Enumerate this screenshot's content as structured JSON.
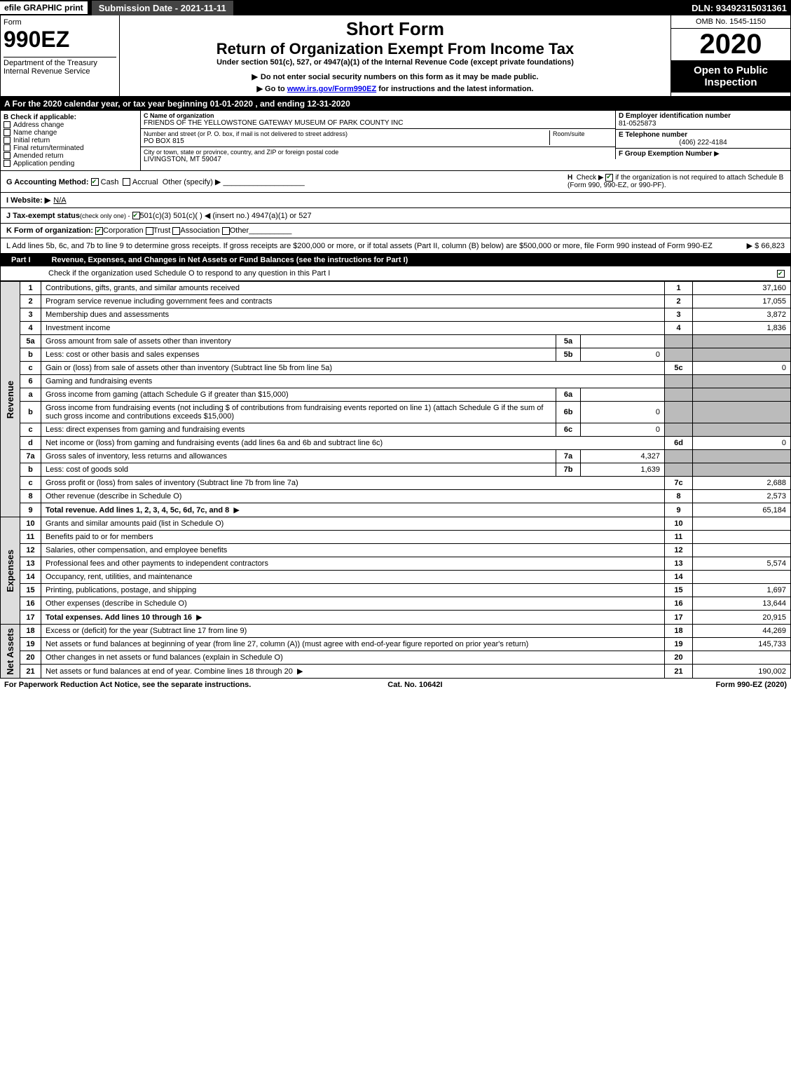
{
  "topbar": {
    "efile": "efile GRAPHIC print",
    "subdate": "Submission Date - 2021-11-11",
    "dln": "DLN: 93492315031361"
  },
  "header": {
    "form_label": "Form",
    "form_number": "990EZ",
    "dept": "Department of the Treasury\nInternal Revenue Service",
    "short_form": "Short Form",
    "return_title": "Return of Organization Exempt From Income Tax",
    "under_section": "Under section 501(c), 527, or 4947(a)(1) of the Internal Revenue Code (except private foundations)",
    "no_ssn": "Do not enter social security numbers on this form as it may be made public.",
    "go_to_pre": "Go to ",
    "go_to_link": "www.irs.gov/Form990EZ",
    "go_to_post": " for instructions and the latest information.",
    "omb": "OMB No. 1545-1150",
    "year": "2020",
    "open_public": "Open to Public Inspection"
  },
  "section_a": "A For the 2020 calendar year, or tax year beginning 01-01-2020 , and ending 12-31-2020",
  "section_b": {
    "title": "B  Check if applicable:",
    "options": [
      "Address change",
      "Name change",
      "Initial return",
      "Final return/terminated",
      "Amended return",
      "Application pending"
    ]
  },
  "section_c": {
    "label": "C Name of organization",
    "name": "FRIENDS OF THE YELLOWSTONE GATEWAY MUSEUM OF PARK COUNTY INC",
    "street_label": "Number and street (or P. O. box, if mail is not delivered to street address)",
    "street": "PO BOX 815",
    "room_label": "Room/suite",
    "city_label": "City or town, state or province, country, and ZIP or foreign postal code",
    "city": "LIVINGSTON, MT  59047"
  },
  "section_d": {
    "label": "D Employer identification number",
    "value": "81-0525873"
  },
  "section_e": {
    "label": "E Telephone number",
    "value": "(406) 222-4184"
  },
  "section_f": {
    "label": "F Group Exemption Number",
    "arrow": "▶"
  },
  "section_g": {
    "label": "G Accounting Method:",
    "cash": "Cash",
    "accrual": "Accrual",
    "other": "Other (specify) ▶"
  },
  "section_h": {
    "label": "H",
    "text": "Check ▶",
    "text2": "if the organization is not required to attach Schedule B (Form 990, 990-EZ, or 990-PF)."
  },
  "section_i": {
    "label": "I Website: ▶",
    "value": "N/A"
  },
  "section_j": {
    "label": "J Tax-exempt status",
    "sub": "(check only one) -",
    "opts": "501(c)(3)   501(c)(  ) ◀ (insert no.)   4947(a)(1) or   527"
  },
  "section_k": {
    "label": "K Form of organization:",
    "opts": [
      "Corporation",
      "Trust",
      "Association",
      "Other"
    ]
  },
  "section_l": {
    "text": "L Add lines 5b, 6c, and 7b to line 9 to determine gross receipts. If gross receipts are $200,000 or more, or if total assets (Part II, column (B) below) are $500,000 or more, file Form 990 instead of Form 990-EZ",
    "value": "$ 66,823"
  },
  "part1": {
    "label": "Part I",
    "title": "Revenue, Expenses, and Changes in Net Assets or Fund Balances (see the instructions for Part I)",
    "check_text": "Check if the organization used Schedule O to respond to any question in this Part I"
  },
  "sidelabels": {
    "revenue": "Revenue",
    "expenses": "Expenses",
    "netassets": "Net Assets"
  },
  "lines": [
    {
      "n": "1",
      "desc": "Contributions, gifts, grants, and similar amounts received",
      "ref": "1",
      "val": "37,160",
      "group": "rev"
    },
    {
      "n": "2",
      "desc": "Program service revenue including government fees and contracts",
      "ref": "2",
      "val": "17,055",
      "group": "rev"
    },
    {
      "n": "3",
      "desc": "Membership dues and assessments",
      "ref": "3",
      "val": "3,872",
      "group": "rev"
    },
    {
      "n": "4",
      "desc": "Investment income",
      "ref": "4",
      "val": "1,836",
      "group": "rev"
    },
    {
      "n": "5a",
      "desc": "Gross amount from sale of assets other than inventory",
      "mini_ref": "5a",
      "mini_val": "",
      "group": "rev",
      "shaded_right": true
    },
    {
      "n": "b",
      "desc": "Less: cost or other basis and sales expenses",
      "mini_ref": "5b",
      "mini_val": "0",
      "group": "rev",
      "shaded_right": true
    },
    {
      "n": "c",
      "desc": "Gain or (loss) from sale of assets other than inventory (Subtract line 5b from line 5a)",
      "ref": "5c",
      "val": "0",
      "group": "rev"
    },
    {
      "n": "6",
      "desc": "Gaming and fundraising events",
      "group": "rev",
      "shaded_right": true,
      "no_ref": true
    },
    {
      "n": "a",
      "desc": "Gross income from gaming (attach Schedule G if greater than $15,000)",
      "mini_ref": "6a",
      "mini_val": "",
      "group": "rev",
      "shaded_right": true
    },
    {
      "n": "b",
      "desc": "Gross income from fundraising events (not including $                    of contributions from fundraising events reported on line 1) (attach Schedule G if the sum of such gross income and contributions exceeds $15,000)",
      "mini_ref": "6b",
      "mini_val": "0",
      "group": "rev",
      "shaded_right": true
    },
    {
      "n": "c",
      "desc": "Less: direct expenses from gaming and fundraising events",
      "mini_ref": "6c",
      "mini_val": "0",
      "group": "rev",
      "shaded_right": true
    },
    {
      "n": "d",
      "desc": "Net income or (loss) from gaming and fundraising events (add lines 6a and 6b and subtract line 6c)",
      "ref": "6d",
      "val": "0",
      "group": "rev"
    },
    {
      "n": "7a",
      "desc": "Gross sales of inventory, less returns and allowances",
      "mini_ref": "7a",
      "mini_val": "4,327",
      "group": "rev",
      "shaded_right": true
    },
    {
      "n": "b",
      "desc": "Less: cost of goods sold",
      "mini_ref": "7b",
      "mini_val": "1,639",
      "group": "rev",
      "shaded_right": true
    },
    {
      "n": "c",
      "desc": "Gross profit or (loss) from sales of inventory (Subtract line 7b from line 7a)",
      "ref": "7c",
      "val": "2,688",
      "group": "rev"
    },
    {
      "n": "8",
      "desc": "Other revenue (describe in Schedule O)",
      "ref": "8",
      "val": "2,573",
      "group": "rev"
    },
    {
      "n": "9",
      "desc": "Total revenue. Add lines 1, 2, 3, 4, 5c, 6d, 7c, and 8",
      "ref": "9",
      "val": "65,184",
      "group": "rev",
      "bold": true,
      "arrow": true
    },
    {
      "n": "10",
      "desc": "Grants and similar amounts paid (list in Schedule O)",
      "ref": "10",
      "val": "",
      "group": "exp"
    },
    {
      "n": "11",
      "desc": "Benefits paid to or for members",
      "ref": "11",
      "val": "",
      "group": "exp"
    },
    {
      "n": "12",
      "desc": "Salaries, other compensation, and employee benefits",
      "ref": "12",
      "val": "",
      "group": "exp"
    },
    {
      "n": "13",
      "desc": "Professional fees and other payments to independent contractors",
      "ref": "13",
      "val": "5,574",
      "group": "exp"
    },
    {
      "n": "14",
      "desc": "Occupancy, rent, utilities, and maintenance",
      "ref": "14",
      "val": "",
      "group": "exp"
    },
    {
      "n": "15",
      "desc": "Printing, publications, postage, and shipping",
      "ref": "15",
      "val": "1,697",
      "group": "exp"
    },
    {
      "n": "16",
      "desc": "Other expenses (describe in Schedule O)",
      "ref": "16",
      "val": "13,644",
      "group": "exp"
    },
    {
      "n": "17",
      "desc": "Total expenses. Add lines 10 through 16",
      "ref": "17",
      "val": "20,915",
      "group": "exp",
      "bold": true,
      "arrow": true
    },
    {
      "n": "18",
      "desc": "Excess or (deficit) for the year (Subtract line 17 from line 9)",
      "ref": "18",
      "val": "44,269",
      "group": "net"
    },
    {
      "n": "19",
      "desc": "Net assets or fund balances at beginning of year (from line 27, column (A)) (must agree with end-of-year figure reported on prior year's return)",
      "ref": "19",
      "val": "145,733",
      "group": "net"
    },
    {
      "n": "20",
      "desc": "Other changes in net assets or fund balances (explain in Schedule O)",
      "ref": "20",
      "val": "",
      "group": "net"
    },
    {
      "n": "21",
      "desc": "Net assets or fund balances at end of year. Combine lines 18 through 20",
      "ref": "21",
      "val": "190,002",
      "group": "net",
      "arrow": true
    }
  ],
  "footer": {
    "left": "For Paperwork Reduction Act Notice, see the separate instructions.",
    "mid": "Cat. No. 10642I",
    "right": "Form 990-EZ (2020)"
  },
  "colors": {
    "black": "#000000",
    "white": "#ffffff",
    "shade": "#bbbbbb",
    "check_green": "#55aa77",
    "link": "#0000ee"
  }
}
